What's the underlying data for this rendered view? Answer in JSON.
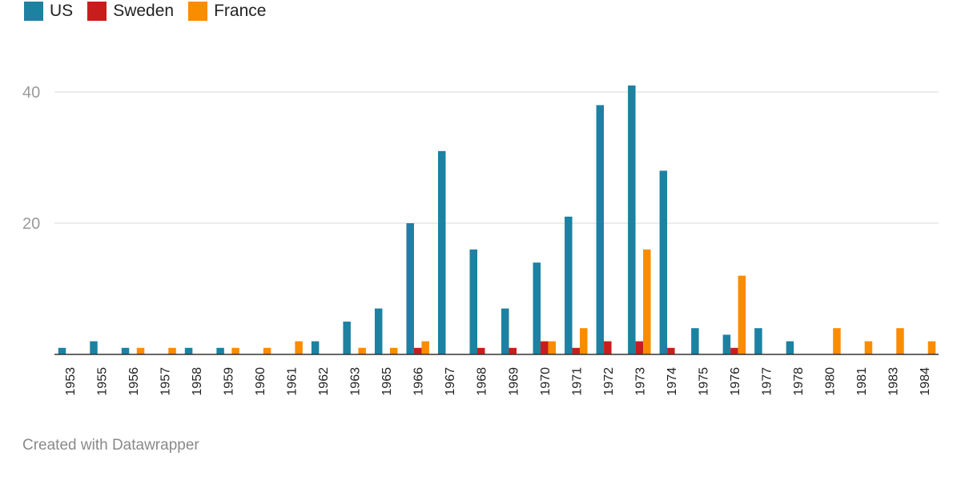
{
  "legend": [
    {
      "name": "US",
      "color": "#1d81a2"
    },
    {
      "name": "Sweden",
      "color": "#c71e1d"
    },
    {
      "name": "France",
      "color": "#fa8c00"
    }
  ],
  "footer": {
    "text": "Created with Datawrapper"
  },
  "chart_data": {
    "type": "bar",
    "title": "",
    "xlabel": "",
    "ylabel": "",
    "ylim": [
      0,
      40
    ],
    "yticks": [
      20,
      40
    ],
    "grid": true,
    "legend_position": "top-left",
    "categories": [
      "1953",
      "1955",
      "1956",
      "1957",
      "1958",
      "1959",
      "1960",
      "1961",
      "1962",
      "1963",
      "1965",
      "1966",
      "1967",
      "1968",
      "1969",
      "1970",
      "1971",
      "1972",
      "1973",
      "1974",
      "1975",
      "1976",
      "1977",
      "1978",
      "1980",
      "1981",
      "1983",
      "1984"
    ],
    "series": [
      {
        "name": "US",
        "color": "#1d81a2",
        "values": [
          1,
          2,
          1,
          0,
          1,
          1,
          0,
          0,
          2,
          5,
          7,
          20,
          31,
          16,
          7,
          14,
          21,
          38,
          41,
          28,
          4,
          3,
          4,
          2,
          0,
          0,
          0,
          0
        ]
      },
      {
        "name": "Sweden",
        "color": "#c71e1d",
        "values": [
          0,
          0,
          0,
          0,
          0,
          0,
          0,
          0,
          0,
          0,
          0,
          1,
          0,
          1,
          1,
          2,
          1,
          2,
          2,
          1,
          0,
          1,
          0,
          0,
          0,
          0,
          0,
          0
        ]
      },
      {
        "name": "France",
        "color": "#fa8c00",
        "values": [
          0,
          0,
          1,
          1,
          0,
          1,
          1,
          2,
          0,
          1,
          1,
          2,
          0,
          0,
          0,
          2,
          4,
          0,
          16,
          0,
          0,
          12,
          0,
          0,
          4,
          2,
          4,
          2
        ]
      }
    ]
  }
}
